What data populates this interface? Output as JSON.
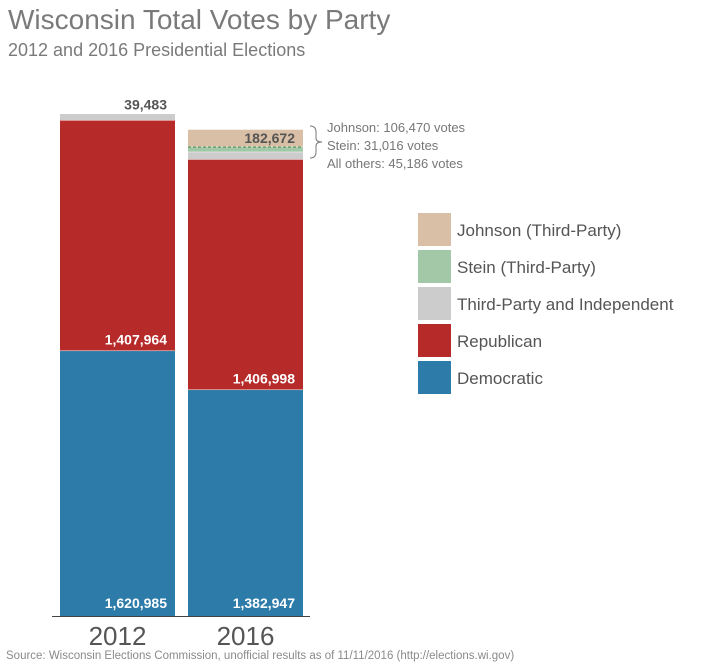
{
  "chart_data": {
    "type": "bar",
    "stacked": true,
    "title": "Wisconsin Total Votes by Party",
    "subtitle": "2012 and 2016 Presidential Elections",
    "categories": [
      "2012",
      "2016"
    ],
    "series": [
      {
        "key": "democratic",
        "name": "Democratic",
        "color": "#2c7ba8",
        "values": [
          1620985,
          1382947
        ]
      },
      {
        "key": "republican",
        "name": "Republican",
        "color": "#b62a2a",
        "values": [
          1407964,
          1406998
        ]
      },
      {
        "key": "other",
        "name": "Third-Party and Independent",
        "color": "#cccccc",
        "values": [
          39483,
          45186
        ]
      },
      {
        "key": "stein",
        "name": "Stein (Third-Party)",
        "color": "#a3c8a8",
        "values": [
          0,
          31016
        ]
      },
      {
        "key": "johnson",
        "name": "Johnson (Third-Party)",
        "color": "#d8bfa6",
        "values": [
          0,
          106470
        ]
      }
    ],
    "labels": {
      "2012": {
        "democratic": "1,620,985",
        "republican": "1,407,964",
        "third_party_total": "39,483"
      },
      "2016": {
        "democratic": "1,382,947",
        "republican": "1,406,998",
        "third_party_total": "182,672"
      }
    },
    "annotations": [
      "Johnson: 106,470 votes",
      "Stein: 31,016 votes",
      "All others: 45,186 votes"
    ],
    "legend_order": [
      "johnson",
      "stein",
      "other",
      "republican",
      "democratic"
    ],
    "legend_position": "right",
    "ylim": [
      0,
      3090000
    ],
    "grid": false
  },
  "source": "Source: Wisconsin Elections Commission, unofficial results as of 11/11/2016 (http://elections.wi.gov)"
}
